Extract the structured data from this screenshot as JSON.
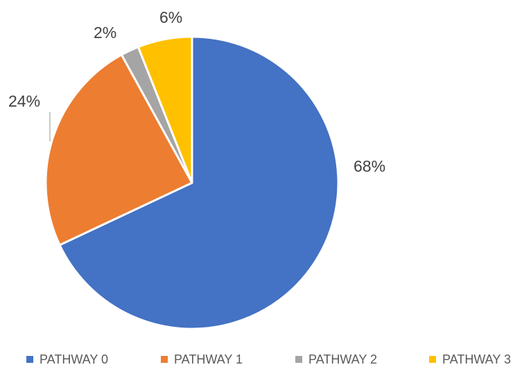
{
  "chart_data": {
    "type": "pie",
    "title": "",
    "categories": [
      "PATHWAY 0",
      "PATHWAY 1",
      "PATHWAY 2",
      "PATHWAY 3"
    ],
    "values": [
      68,
      24,
      2,
      6
    ],
    "data_labels": [
      "68%",
      "24%",
      "2%",
      "6%"
    ],
    "colors": [
      "#4472C4",
      "#ED7D31",
      "#A5A5A5",
      "#FFC000"
    ],
    "legend_position": "bottom",
    "start_angle_deg": 0,
    "direction": "clockwise"
  }
}
